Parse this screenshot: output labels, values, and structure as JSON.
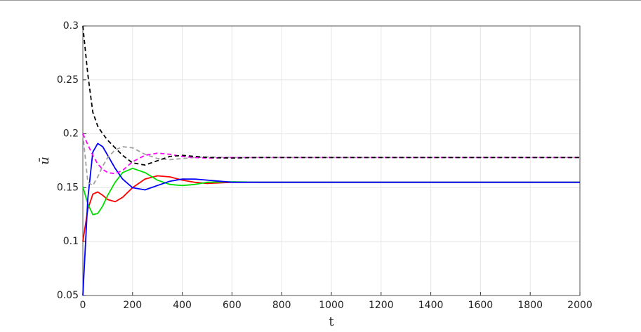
{
  "chart_data": {
    "type": "line",
    "xlabel": "t",
    "ylabel": "ū",
    "x": [
      0,
      20,
      40,
      60,
      80,
      100,
      130,
      160,
      200,
      250,
      300,
      350,
      400,
      450,
      500,
      600,
      700,
      800,
      1000,
      1500,
      2000
    ],
    "series": [
      {
        "color": "#ff0000",
        "style": "solid",
        "values": [
          0.1,
          0.13,
          0.144,
          0.146,
          0.143,
          0.139,
          0.137,
          0.141,
          0.15,
          0.158,
          0.161,
          0.16,
          0.157,
          0.155,
          0.154,
          0.155,
          0.155,
          0.155,
          0.155,
          0.155,
          0.155
        ]
      },
      {
        "color": "#00e000",
        "style": "solid",
        "values": [
          0.151,
          0.135,
          0.125,
          0.126,
          0.133,
          0.143,
          0.155,
          0.164,
          0.168,
          0.164,
          0.157,
          0.153,
          0.152,
          0.153,
          0.155,
          0.1555,
          0.155,
          0.155,
          0.155,
          0.155,
          0.155
        ]
      },
      {
        "color": "#0000ff",
        "style": "solid",
        "values": [
          0.05,
          0.14,
          0.183,
          0.191,
          0.188,
          0.18,
          0.168,
          0.158,
          0.15,
          0.148,
          0.152,
          0.156,
          0.158,
          0.158,
          0.157,
          0.155,
          0.155,
          0.155,
          0.155,
          0.155,
          0.155
        ]
      },
      {
        "color": "#a0a0a0",
        "style": "dashed",
        "values": [
          0.2,
          0.155,
          0.152,
          0.16,
          0.17,
          0.178,
          0.185,
          0.188,
          0.187,
          0.181,
          0.177,
          0.176,
          0.177,
          0.178,
          0.1785,
          0.178,
          0.178,
          0.178,
          0.178,
          0.178,
          0.178
        ]
      },
      {
        "color": "#ff00ff",
        "style": "dashed",
        "values": [
          0.2,
          0.19,
          0.18,
          0.172,
          0.167,
          0.164,
          0.163,
          0.166,
          0.174,
          0.18,
          0.182,
          0.181,
          0.179,
          0.178,
          0.1775,
          0.178,
          0.178,
          0.178,
          0.178,
          0.178,
          0.178
        ]
      },
      {
        "color": "#000000",
        "style": "dashed",
        "values": [
          0.3,
          0.255,
          0.22,
          0.207,
          0.2,
          0.194,
          0.187,
          0.18,
          0.173,
          0.171,
          0.175,
          0.179,
          0.18,
          0.179,
          0.178,
          0.1775,
          0.178,
          0.178,
          0.178,
          0.178,
          0.178
        ]
      }
    ],
    "xlim": [
      0,
      2000
    ],
    "xticks": [
      0,
      200,
      400,
      600,
      800,
      1000,
      1200,
      1400,
      1600,
      1800,
      2000
    ],
    "ylim": [
      0.05,
      0.3
    ],
    "yticks": [
      0.05,
      0.1,
      0.15,
      0.2,
      0.25,
      0.3
    ],
    "grid": true
  }
}
